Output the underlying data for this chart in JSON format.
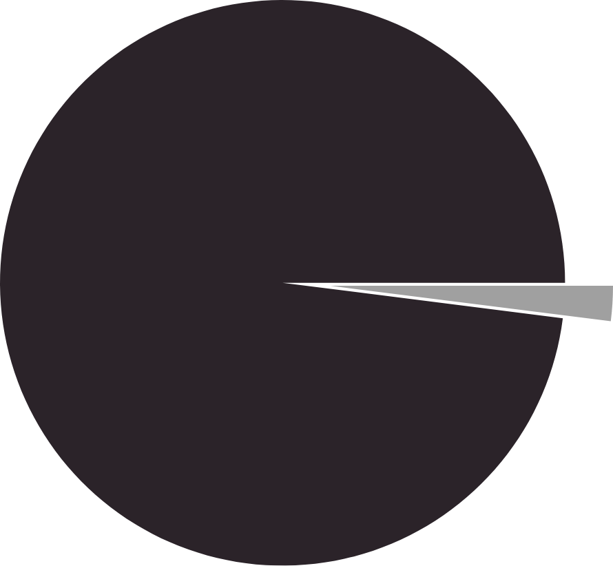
{
  "chart_data": {
    "type": "pie",
    "categories": [
      null,
      null
    ],
    "values": [
      2,
      98
    ],
    "colors": [
      "#a0a0a0",
      "#2b2329"
    ]
  }
}
